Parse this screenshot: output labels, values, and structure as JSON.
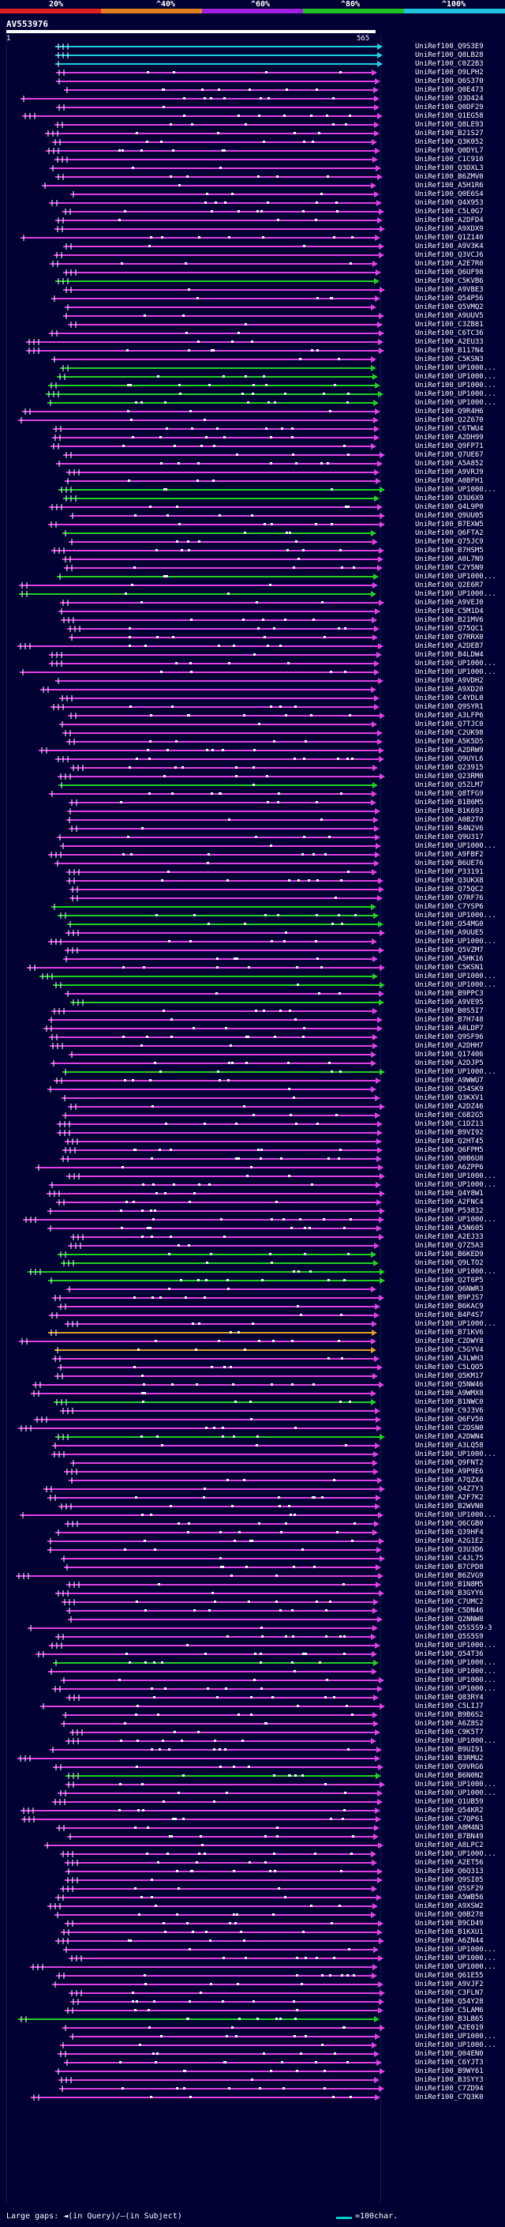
{
  "legend": {
    "labels": [
      "20%",
      "^40%",
      "^60%",
      "^80%",
      "^100%"
    ],
    "colors": [
      "#e02020",
      "#e08020",
      "#a020e0",
      "#20c020",
      "#20c0e0"
    ]
  },
  "query": {
    "name": "AV553976",
    "start_label": "1",
    "end_label": "565"
  },
  "palette": {
    "magenta": "#e040e0",
    "green": "#20d020",
    "cyan": "#20d0e0",
    "orange": "#e0a020",
    "white": "#ffffff"
  },
  "hits": [
    {
      "label": "UniRef100_Q9S3E9",
      "color": "cyan"
    },
    {
      "label": "UniRef100_Q8LB28",
      "color": "cyan"
    },
    {
      "label": "UniRef100_C0Z2B3",
      "color": "cyan"
    },
    {
      "label": "UniRef100_O9LPH2",
      "color": "magenta"
    },
    {
      "label": "UniRef100_Q6S370",
      "color": "magenta"
    },
    {
      "label": "UniRef100_Q0E473",
      "color": "magenta"
    },
    {
      "label": "UniRef100_Q3D424",
      "color": "magenta"
    },
    {
      "label": "UniRef100_Q0DF29",
      "color": "magenta"
    },
    {
      "label": "UniRef100_Q1EG58",
      "color": "magenta"
    },
    {
      "label": "UniRef100_Q8LE93",
      "color": "magenta"
    },
    {
      "label": "UniRef100_B21S27",
      "color": "magenta"
    },
    {
      "label": "UniRef100_Q3K052",
      "color": "magenta"
    },
    {
      "label": "UniRef100_Q0DYL7",
      "color": "magenta"
    },
    {
      "label": "UniRef100_C1C910",
      "color": "magenta"
    },
    {
      "label": "UniRef100_Q3DXL3",
      "color": "magenta"
    },
    {
      "label": "UniRef100_B6ZMV0",
      "color": "magenta"
    },
    {
      "label": "UniRef100_A5H1R6",
      "color": "magenta"
    },
    {
      "label": "UniRef100_Q0E6S4",
      "color": "magenta"
    },
    {
      "label": "UniRef100_Q4X953",
      "color": "magenta"
    },
    {
      "label": "UniRef100_C5L0G7",
      "color": "magenta"
    },
    {
      "label": "UniRef100_A2DFD4",
      "color": "magenta"
    },
    {
      "label": "UniRef100_A9XDX9",
      "color": "magenta"
    },
    {
      "label": "UniRef100_Q1Z140",
      "color": "magenta"
    },
    {
      "label": "UniRef100_A9V3K4",
      "color": "magenta"
    },
    {
      "label": "UniRef100_Q3VCJ6",
      "color": "magenta"
    },
    {
      "label": "UniRef100_A2E7R0",
      "color": "magenta"
    },
    {
      "label": "UniRef100_Q6UF98",
      "color": "magenta"
    },
    {
      "label": "UniRef100_C5KVB6",
      "color": "green"
    },
    {
      "label": "UniRef100_A9VBE3",
      "color": "magenta"
    },
    {
      "label": "UniRef100_Q54P56",
      "color": "magenta"
    },
    {
      "label": "UniRef100_Q5VMQ2",
      "color": "magenta"
    },
    {
      "label": "UniRef100_A9UUV5",
      "color": "magenta"
    },
    {
      "label": "UniRef100_C3ZB81",
      "color": "magenta"
    },
    {
      "label": "UniRef100_C6TC36",
      "color": "magenta"
    },
    {
      "label": "UniRef100_A2EU33",
      "color": "magenta"
    },
    {
      "label": "UniRef100_B117N4",
      "color": "magenta"
    },
    {
      "label": "UniRef100_C5KSN3",
      "color": "magenta"
    },
    {
      "label": "UniRef100_UP1000...",
      "color": "green"
    },
    {
      "label": "UniRef100_UP1000...",
      "color": "green"
    },
    {
      "label": "UniRef100_UP1000...",
      "color": "green"
    },
    {
      "label": "UniRef100_UP1000...",
      "color": "green"
    },
    {
      "label": "UniRef100_UP1000...",
      "color": "green"
    },
    {
      "label": "UniRef100_Q9R4H6",
      "color": "magenta"
    },
    {
      "label": "UniRef100_Q2Z670",
      "color": "magenta"
    },
    {
      "label": "UniRef100_C6TWU4",
      "color": "magenta"
    },
    {
      "label": "UniRef100_A2DH99",
      "color": "magenta"
    },
    {
      "label": "UniRef100_Q9FP71",
      "color": "magenta"
    },
    {
      "label": "UniRef100_Q7UE67",
      "color": "magenta"
    },
    {
      "label": "UniRef100_A5A852",
      "color": "magenta"
    },
    {
      "label": "UniRef100_A9VRJ9",
      "color": "magenta"
    },
    {
      "label": "UniRef100_A0BFH1",
      "color": "magenta"
    },
    {
      "label": "UniRef100_UP1000...",
      "color": "green"
    },
    {
      "label": "UniRef100_Q3U6X9",
      "color": "green"
    },
    {
      "label": "UniRef100_Q4L9P0",
      "color": "magenta"
    },
    {
      "label": "UniRef100_Q9UU05",
      "color": "magenta"
    },
    {
      "label": "UniRef100_B7EXW5",
      "color": "magenta"
    },
    {
      "label": "UniRef100_Q6FTA2",
      "color": "green"
    },
    {
      "label": "UniRef100_Q75JC9",
      "color": "magenta"
    },
    {
      "label": "UniRef100_B7HSM5",
      "color": "magenta"
    },
    {
      "label": "UniRef100_A0L7N9",
      "color": "magenta"
    },
    {
      "label": "UniRef100_C2Y5N9",
      "color": "magenta"
    },
    {
      "label": "UniRef100_UP1000...",
      "color": "green"
    },
    {
      "label": "UniRef100_Q2E6R7",
      "color": "magenta"
    },
    {
      "label": "UniRef100_UP1000...",
      "color": "green"
    },
    {
      "label": "UniRef100_A9VEJ0",
      "color": "magenta"
    },
    {
      "label": "UniRef100_C5M1D4",
      "color": "magenta"
    },
    {
      "label": "UniRef100_B21MV6",
      "color": "magenta"
    },
    {
      "label": "UniRef100_Q75QC1",
      "color": "magenta"
    },
    {
      "label": "UniRef100_Q7RRX0",
      "color": "magenta"
    },
    {
      "label": "UniRef100_A2DEB7",
      "color": "magenta"
    },
    {
      "label": "UniRef100_B4LDW4",
      "color": "magenta"
    },
    {
      "label": "UniRef100_UP1000...",
      "color": "magenta"
    },
    {
      "label": "UniRef100_UP1000...",
      "color": "magenta"
    },
    {
      "label": "UniRef100_A9VDH2",
      "color": "magenta"
    },
    {
      "label": "UniRef100_A9XD20",
      "color": "magenta"
    },
    {
      "label": "UniRef100_C4YDL0",
      "color": "magenta"
    },
    {
      "label": "UniRef100_Q9SYR1",
      "color": "magenta"
    },
    {
      "label": "UniRef100_A3LFP6",
      "color": "magenta"
    },
    {
      "label": "UniRef100_Q7TJC0",
      "color": "magenta"
    },
    {
      "label": "UniRef100_C2UK98",
      "color": "magenta"
    },
    {
      "label": "UniRef100_A5K5D5",
      "color": "magenta"
    },
    {
      "label": "UniRef100_A2DRW9",
      "color": "magenta"
    },
    {
      "label": "UniRef100_Q9UYL6",
      "color": "magenta"
    },
    {
      "label": "UniRef100_Q23915",
      "color": "magenta"
    },
    {
      "label": "UniRef100_Q23RM0",
      "color": "magenta"
    },
    {
      "label": "UniRef100_Q5ZLM7",
      "color": "green"
    },
    {
      "label": "UniRef100_Q8TFG9",
      "color": "magenta"
    },
    {
      "label": "UniRef100_B1B6M5",
      "color": "magenta"
    },
    {
      "label": "UniRef100_B1K693",
      "color": "magenta"
    },
    {
      "label": "UniRef100_A0B2T0",
      "color": "magenta"
    },
    {
      "label": "UniRef100_B4N2V6",
      "color": "magenta"
    },
    {
      "label": "UniRef100_Q9U317",
      "color": "magenta"
    },
    {
      "label": "UniRef100_UP1000...",
      "color": "magenta"
    },
    {
      "label": "UniRef100_A9FBF2",
      "color": "magenta"
    },
    {
      "label": "UniRef100_B6UE76",
      "color": "magenta"
    },
    {
      "label": "UniRef100_P33191",
      "color": "magenta"
    },
    {
      "label": "UniRef100_Q3UKX8",
      "color": "magenta"
    },
    {
      "label": "UniRef100_Q75QC2",
      "color": "magenta"
    },
    {
      "label": "UniRef100_Q7RF76",
      "color": "magenta"
    },
    {
      "label": "UniRef100_C7YSP6",
      "color": "green"
    },
    {
      "label": "UniRef100_UP1000...",
      "color": "green"
    },
    {
      "label": "UniRef100_Q54MG0",
      "color": "green"
    },
    {
      "label": "UniRef100_A9UUE5",
      "color": "magenta"
    },
    {
      "label": "UniRef100_UP1000...",
      "color": "magenta"
    },
    {
      "label": "UniRef100_Q5VZM7",
      "color": "magenta"
    },
    {
      "label": "UniRef100_A5HK16",
      "color": "magenta"
    },
    {
      "label": "UniRef100_C5KSN1",
      "color": "magenta"
    },
    {
      "label": "UniRef100_UP1000...",
      "color": "green"
    },
    {
      "label": "UniRef100_UP1000...",
      "color": "green"
    },
    {
      "label": "UniRef100_B9PPC3",
      "color": "magenta"
    },
    {
      "label": "UniRef100_A9VE95",
      "color": "green"
    },
    {
      "label": "UniRef100_B0S5I7",
      "color": "magenta"
    },
    {
      "label": "UniRef100_B7H748",
      "color": "magenta"
    },
    {
      "label": "UniRef100_A0LDP7",
      "color": "magenta"
    },
    {
      "label": "UniRef100_Q9SF96",
      "color": "magenta"
    },
    {
      "label": "UniRef100_A2DHH7",
      "color": "magenta"
    },
    {
      "label": "UniRef100_Q17406",
      "color": "magenta"
    },
    {
      "label": "UniRef100_A2DJP5",
      "color": "magenta"
    },
    {
      "label": "UniRef100_UP1000...",
      "color": "green"
    },
    {
      "label": "UniRef100_A9WWU7",
      "color": "magenta"
    },
    {
      "label": "UniRef100_Q54SK9",
      "color": "magenta"
    },
    {
      "label": "UniRef100_Q3KXV1",
      "color": "magenta"
    },
    {
      "label": "UniRef100_A2DZ46",
      "color": "magenta"
    },
    {
      "label": "UniRef100_C6B2G5",
      "color": "magenta"
    },
    {
      "label": "UniRef100_C1DZ13",
      "color": "magenta"
    },
    {
      "label": "UniRef100_B9VI92",
      "color": "magenta"
    },
    {
      "label": "UniRef100_Q2HT45",
      "color": "magenta"
    },
    {
      "label": "UniRef100_Q6FPM5",
      "color": "magenta"
    },
    {
      "label": "UniRef100_Q0B6U8",
      "color": "magenta"
    },
    {
      "label": "UniRef100_A6ZPP6",
      "color": "magenta"
    },
    {
      "label": "UniRef100_UP1000...",
      "color": "magenta"
    },
    {
      "label": "UniRef100_UP1000...",
      "color": "magenta"
    },
    {
      "label": "UniRef100_Q4Y8W1",
      "color": "magenta"
    },
    {
      "label": "UniRef100_A2FNC4",
      "color": "magenta"
    },
    {
      "label": "UniRef100_P53832",
      "color": "magenta"
    },
    {
      "label": "UniRef100_UP1000...",
      "color": "magenta"
    },
    {
      "label": "UniRef100_A5N605",
      "color": "magenta"
    },
    {
      "label": "UniRef100_A2EJ33",
      "color": "magenta"
    },
    {
      "label": "UniRef100_Q7Z5A3",
      "color": "magenta"
    },
    {
      "label": "UniRef100_B6KED9",
      "color": "green"
    },
    {
      "label": "UniRef100_Q9LTO2",
      "color": "green"
    },
    {
      "label": "UniRef100_UP1000...",
      "color": "green"
    },
    {
      "label": "UniRef100_Q2T6P5",
      "color": "green"
    },
    {
      "label": "UniRef100_Q6NWR3",
      "color": "magenta"
    },
    {
      "label": "UniRef100_B9PJS7",
      "color": "magenta"
    },
    {
      "label": "UniRef100_B6KAC9",
      "color": "magenta"
    },
    {
      "label": "UniRef100_B4P4S7",
      "color": "magenta"
    },
    {
      "label": "UniRef100_UP1000...",
      "color": "magenta"
    },
    {
      "label": "UniRef100_B71KV6",
      "color": "orange"
    },
    {
      "label": "UniRef100_C2DWY8",
      "color": "magenta"
    },
    {
      "label": "UniRef100_C5GYV4",
      "color": "orange"
    },
    {
      "label": "UniRef100_A3LWH3",
      "color": "magenta"
    },
    {
      "label": "UniRef100_C5LQO5",
      "color": "magenta"
    },
    {
      "label": "UniRef100_Q5KM17",
      "color": "magenta"
    },
    {
      "label": "UniRef100_Q5NW46",
      "color": "magenta"
    },
    {
      "label": "UniRef100_A9WMX8",
      "color": "magenta"
    },
    {
      "label": "UniRef100_B1NWC0",
      "color": "green"
    },
    {
      "label": "UniRef100_C9J3V6",
      "color": "magenta"
    },
    {
      "label": "UniRef100_Q6FV50",
      "color": "magenta"
    },
    {
      "label": "UniRef100_C2DSN0",
      "color": "magenta"
    },
    {
      "label": "UniRef100_A2DWN4",
      "color": "green"
    },
    {
      "label": "UniRef100_A3LQ58",
      "color": "magenta"
    },
    {
      "label": "UniRef100_UP1000...",
      "color": "magenta"
    },
    {
      "label": "UniRef100_Q9FNT2",
      "color": "magenta"
    },
    {
      "label": "UniRef100_A9P9E6",
      "color": "magenta"
    },
    {
      "label": "UniRef100_A7QZX4",
      "color": "magenta"
    },
    {
      "label": "UniRef100_Q4Z7Y3",
      "color": "magenta"
    },
    {
      "label": "UniRef100_A2F7K2",
      "color": "magenta"
    },
    {
      "label": "UniRef100_B2WVN0",
      "color": "magenta"
    },
    {
      "label": "UniRef100_UP1000...",
      "color": "magenta"
    },
    {
      "label": "UniRef100_Q6CGB0",
      "color": "magenta"
    },
    {
      "label": "UniRef100_Q39HF4",
      "color": "magenta"
    },
    {
      "label": "UniRef100_A2G1E2",
      "color": "magenta"
    },
    {
      "label": "UniRef100_Q3U3D6",
      "color": "magenta"
    },
    {
      "label": "UniRef100_C4JL75",
      "color": "magenta"
    },
    {
      "label": "UniRef100_B7CPD8",
      "color": "magenta"
    },
    {
      "label": "UniRef100_B6ZVG9",
      "color": "magenta"
    },
    {
      "label": "UniRef100_B1N8M5",
      "color": "magenta"
    },
    {
      "label": "UniRef100_B3GYY6",
      "color": "magenta"
    },
    {
      "label": "UniRef100_C7UMC2",
      "color": "magenta"
    },
    {
      "label": "UniRef100_C5DN46",
      "color": "magenta"
    },
    {
      "label": "UniRef100_Q2NNW8",
      "color": "magenta"
    },
    {
      "label": "UniRef100_Q5S5S9-3",
      "color": "magenta"
    },
    {
      "label": "UniRef100_Q5S5S9",
      "color": "magenta"
    },
    {
      "label": "UniRef100_UP1000...",
      "color": "magenta"
    },
    {
      "label": "UniRef100_Q54T36",
      "color": "magenta"
    },
    {
      "label": "UniRef100_UP1000...",
      "color": "green"
    },
    {
      "label": "UniRef100_UP1000...",
      "color": "magenta"
    },
    {
      "label": "UniRef100_UP1000...",
      "color": "magenta"
    },
    {
      "label": "UniRef100_UP1000...",
      "color": "magenta"
    },
    {
      "label": "UniRef100_Q83RY4",
      "color": "magenta"
    },
    {
      "label": "UniRef100_C5LIJ7",
      "color": "magenta"
    },
    {
      "label": "UniRef100_B9B6S2",
      "color": "magenta"
    },
    {
      "label": "UniRef100_A6Z8S2",
      "color": "magenta"
    },
    {
      "label": "UniRef100_C9K5T7",
      "color": "magenta"
    },
    {
      "label": "UniRef100_UP1000...",
      "color": "magenta"
    },
    {
      "label": "UniRef100_B9UI91",
      "color": "magenta"
    },
    {
      "label": "UniRef100_B3RMU2",
      "color": "magenta"
    },
    {
      "label": "UniRef100_Q9VRG6",
      "color": "magenta"
    },
    {
      "label": "UniRef100_B6N0N2",
      "color": "green"
    },
    {
      "label": "UniRef100_UP1000...",
      "color": "magenta"
    },
    {
      "label": "UniRef100_UP1000...",
      "color": "magenta"
    },
    {
      "label": "UniRef100_Q1UB59",
      "color": "magenta"
    },
    {
      "label": "UniRef100_Q54KR2",
      "color": "magenta"
    },
    {
      "label": "UniRef100_C7QP61",
      "color": "magenta"
    },
    {
      "label": "UniRef100_A8M4N3",
      "color": "magenta"
    },
    {
      "label": "UniRef100_B7BN49",
      "color": "magenta"
    },
    {
      "label": "UniRef100_A8LPC2",
      "color": "magenta"
    },
    {
      "label": "UniRef100_UP1000...",
      "color": "magenta"
    },
    {
      "label": "UniRef100_A2ET56",
      "color": "magenta"
    },
    {
      "label": "UniRef100_Q6Q313",
      "color": "magenta"
    },
    {
      "label": "UniRef100_Q9SI05",
      "color": "magenta"
    },
    {
      "label": "UniRef100_Q5SF29",
      "color": "magenta"
    },
    {
      "label": "UniRef100_A5WB56",
      "color": "magenta"
    },
    {
      "label": "UniRef100_A9XSW2",
      "color": "magenta"
    },
    {
      "label": "UniRef100_Q0B278",
      "color": "magenta"
    },
    {
      "label": "UniRef100_B9CD49",
      "color": "magenta"
    },
    {
      "label": "UniRef100_B1KXU1",
      "color": "magenta"
    },
    {
      "label": "UniRef100_A6ZN44",
      "color": "magenta"
    },
    {
      "label": "UniRef100_UP1000...",
      "color": "magenta"
    },
    {
      "label": "UniRef100_UP1000...",
      "color": "magenta"
    },
    {
      "label": "UniRef100_UP1000...",
      "color": "magenta"
    },
    {
      "label": "UniRef100_Q61E55",
      "color": "magenta"
    },
    {
      "label": "UniRef100_A9VJF2",
      "color": "magenta"
    },
    {
      "label": "UniRef100_C3FLN7",
      "color": "magenta"
    },
    {
      "label": "UniRef100_Q54Y28",
      "color": "magenta"
    },
    {
      "label": "UniRef100_C5LAM6",
      "color": "magenta"
    },
    {
      "label": "UniRef100_B3LB65",
      "color": "green"
    },
    {
      "label": "UniRef100_A2E019",
      "color": "magenta"
    },
    {
      "label": "UniRef100_UP1000...",
      "color": "magenta"
    },
    {
      "label": "UniRef100_UP1000...",
      "color": "magenta"
    },
    {
      "label": "UniRef100_Q04EN0",
      "color": "magenta"
    },
    {
      "label": "UniRef100_C6YJT3",
      "color": "magenta"
    },
    {
      "label": "UniRef100_B9WY61",
      "color": "magenta"
    },
    {
      "label": "UniRef100_B3SYY3",
      "color": "magenta"
    },
    {
      "label": "UniRef100_C7ZD94",
      "color": "magenta"
    },
    {
      "label": "UniRef100_C7Q3K0",
      "color": "magenta"
    }
  ],
  "footer": {
    "left_text": "Large gaps: ◄(in Query)/—(in Subject)",
    "right_text": "=100char."
  }
}
